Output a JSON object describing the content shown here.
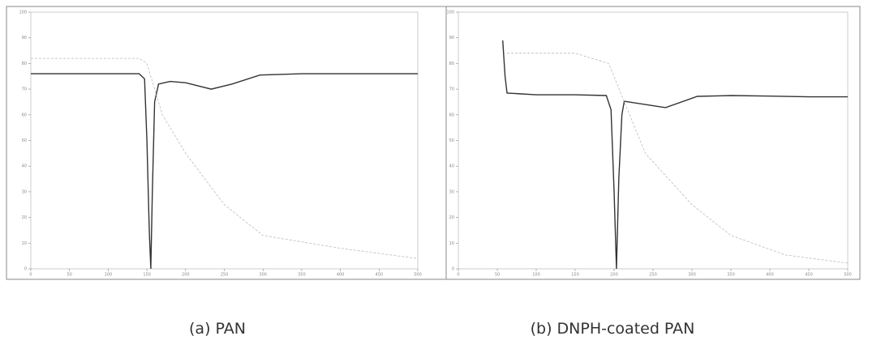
{
  "chart_data": [
    {
      "type": "line",
      "title": "(a) PAN",
      "xlim": [
        0,
        500
      ],
      "xticks": [
        0,
        50,
        100,
        150,
        200,
        250,
        300,
        350,
        400,
        450,
        500
      ],
      "ylim": [
        0,
        100
      ],
      "yticks": [
        0,
        10,
        20,
        30,
        40,
        50,
        60,
        70,
        80,
        90,
        100
      ],
      "series": [
        {
          "color": "#333333",
          "x": [
            0,
            50,
            100,
            140,
            147,
            150,
            153,
            155,
            157,
            160,
            165,
            180,
            200,
            233,
            260,
            296,
            350,
            400,
            450,
            500
          ],
          "values": [
            76,
            76,
            76,
            76,
            74,
            50,
            15,
            0,
            30,
            65,
            72,
            73,
            72.5,
            70,
            72,
            75.5,
            76,
            76,
            76,
            76
          ]
        },
        {
          "color": "#bbbbbb",
          "x": [
            0,
            140,
            150,
            170,
            200,
            250,
            300,
            400,
            500
          ],
          "values": [
            82,
            82,
            80,
            60,
            45,
            25,
            13,
            8,
            4
          ]
        }
      ]
    },
    {
      "type": "line",
      "title": "(b) DNPH-coated PAN",
      "xlim": [
        0,
        500
      ],
      "xticks": [
        0,
        50,
        100,
        150,
        200,
        250,
        300,
        350,
        400,
        450,
        500
      ],
      "ylim": [
        0,
        100
      ],
      "yticks": [
        0,
        10,
        20,
        30,
        40,
        50,
        60,
        70,
        80,
        90,
        100
      ],
      "series": [
        {
          "color": "#333333",
          "x": [
            57,
            60,
            62.5,
            100,
            150,
            190,
            196,
            200,
            203,
            206,
            210,
            213,
            240,
            266,
            307,
            350,
            400,
            450,
            500
          ],
          "values": [
            89,
            75,
            68.5,
            67.8,
            67.8,
            67.5,
            62,
            30,
            0,
            35,
            60,
            65.3,
            64,
            62.8,
            67.2,
            67.5,
            67.3,
            67,
            67
          ]
        },
        {
          "color": "#bbbbbb",
          "x": [
            62.5,
            150,
            193,
            240,
            300,
            350,
            420,
            500
          ],
          "values": [
            84,
            84,
            80,
            45,
            25,
            13,
            5.4,
            2.2
          ]
        }
      ]
    }
  ]
}
